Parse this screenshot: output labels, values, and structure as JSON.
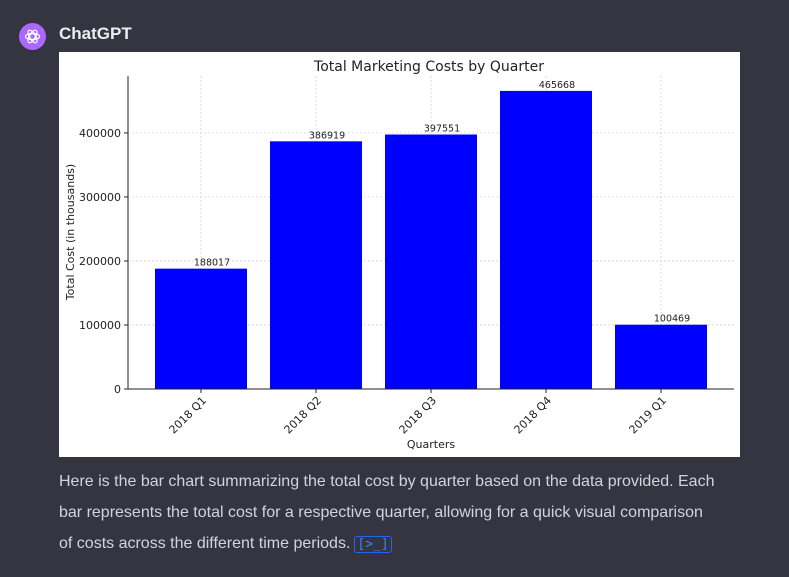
{
  "message": {
    "author": "ChatGPT",
    "avatar_icon": "openai-logo-icon",
    "text": "Here is the bar chart summarizing the total cost by quarter based on the data provided. Each bar represents the total cost for a respective quarter, allowing for a quick visual comparison of costs across the different time periods.",
    "citation_icon": "code-interpreter-icon",
    "citation_label": "[>_]"
  },
  "chart_data": {
    "type": "bar",
    "title": "Total Marketing Costs by Quarter",
    "xlabel": "Quarters",
    "ylabel": "Total Cost (in thousands)",
    "categories": [
      "2018 Q1",
      "2018 Q2",
      "2018 Q3",
      "2018 Q4",
      "2019 Q1"
    ],
    "values": [
      188017,
      386919,
      397551,
      465668,
      100469
    ],
    "yticks": [
      0,
      100000,
      200000,
      300000,
      400000
    ],
    "ylim": [
      0,
      488951
    ],
    "grid": true,
    "bar_color": "#0000ff"
  }
}
